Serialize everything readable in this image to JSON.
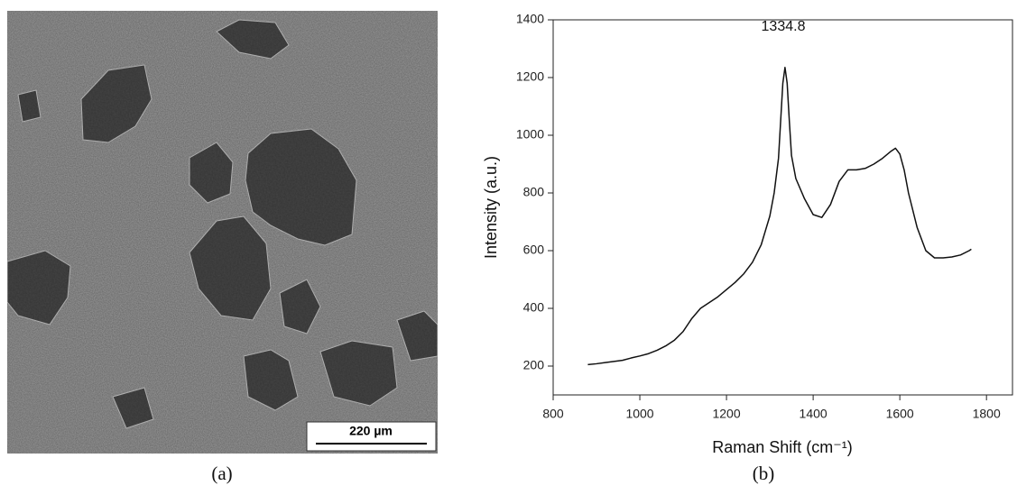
{
  "image_panel": {
    "scale_bar": "220 µm",
    "caption": "(a)"
  },
  "chart_data": {
    "type": "line",
    "caption": "(b)",
    "xlabel": "Raman Shift (cm⁻¹)",
    "ylabel": "Intensity (a.u.)",
    "annotation": "1334.8",
    "color": "#111111",
    "x": [
      880,
      900,
      920,
      940,
      960,
      980,
      1000,
      1020,
      1040,
      1060,
      1080,
      1100,
      1120,
      1140,
      1160,
      1180,
      1200,
      1220,
      1240,
      1260,
      1280,
      1300,
      1310,
      1320,
      1325,
      1330,
      1335,
      1340,
      1345,
      1350,
      1360,
      1380,
      1400,
      1420,
      1440,
      1460,
      1480,
      1500,
      1520,
      1540,
      1560,
      1580,
      1590,
      1600,
      1610,
      1620,
      1640,
      1660,
      1680,
      1700,
      1720,
      1740,
      1760,
      1765
    ],
    "values": [
      205,
      208,
      212,
      216,
      220,
      228,
      235,
      243,
      255,
      270,
      290,
      320,
      365,
      400,
      420,
      440,
      465,
      490,
      520,
      560,
      620,
      720,
      800,
      920,
      1050,
      1180,
      1235,
      1180,
      1050,
      930,
      850,
      780,
      725,
      715,
      760,
      840,
      880,
      880,
      885,
      900,
      920,
      945,
      955,
      935,
      880,
      800,
      680,
      600,
      575,
      575,
      578,
      585,
      600,
      605
    ],
    "xlim": [
      800,
      1860
    ],
    "xticks": [
      800,
      1000,
      1200,
      1400,
      1600,
      1800
    ],
    "ylim": [
      100,
      1400
    ],
    "yticks": [
      200,
      400,
      600,
      800,
      1000,
      1200,
      1400
    ]
  }
}
